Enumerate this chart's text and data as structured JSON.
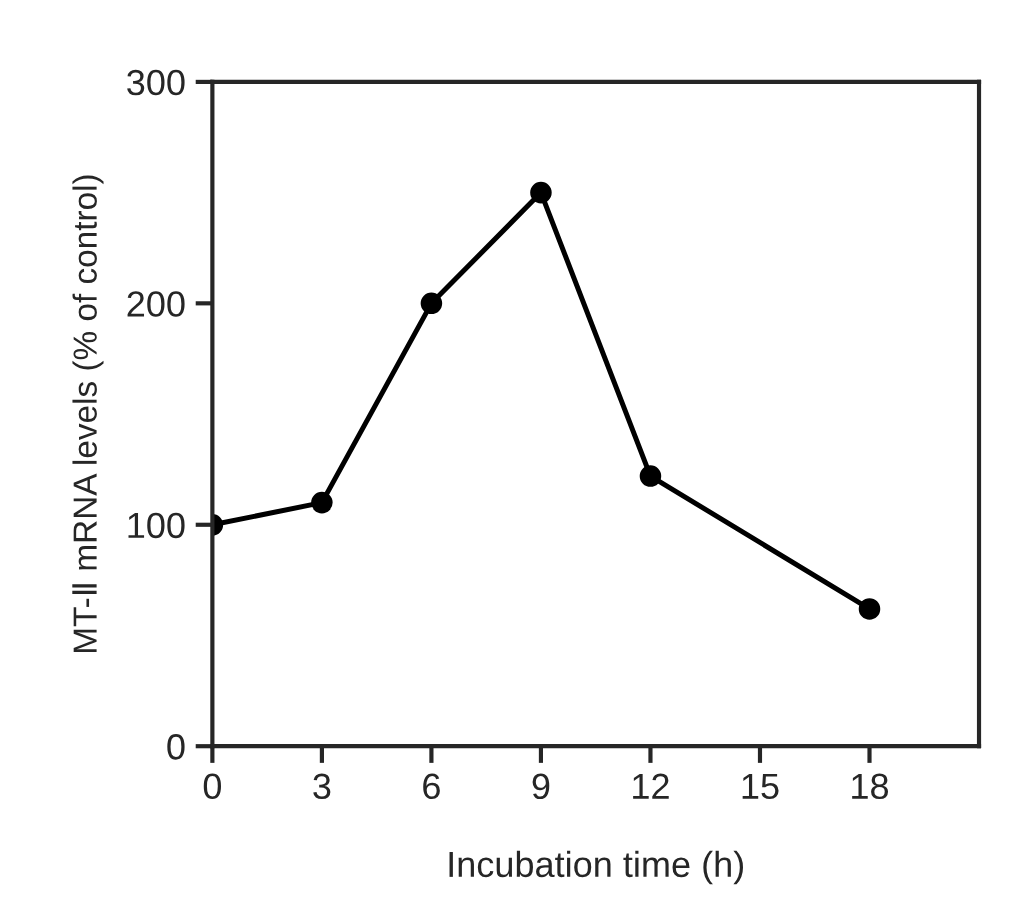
{
  "chart_data": {
    "type": "line",
    "xlabel": "Incubation time (h)",
    "ylabel": "MT-Ⅱ mRNA levels (% of control)",
    "x": [
      0,
      3,
      6,
      9,
      12,
      18
    ],
    "series": [
      {
        "color": "#000000",
        "values": [
          100,
          110,
          200,
          250,
          122,
          62
        ]
      }
    ],
    "xlim": [
      0,
      21
    ],
    "xticks": [
      0,
      3,
      6,
      9,
      12,
      15,
      18
    ],
    "ylim": [
      0,
      300
    ],
    "yticks": [
      0,
      100,
      200,
      300
    ],
    "marker": "circle",
    "line_style": "solid"
  }
}
